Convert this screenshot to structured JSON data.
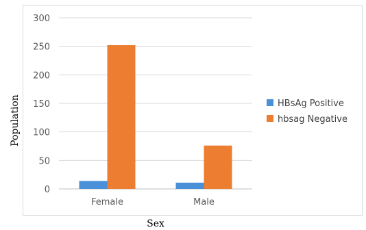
{
  "chart_data": {
    "type": "bar",
    "categories": [
      "Female",
      "Male"
    ],
    "series": [
      {
        "name": "HBsAg Positive",
        "values": [
          14,
          11
        ],
        "color": "#4a90d9"
      },
      {
        "name": "hbsag Negative",
        "values": [
          252,
          76
        ],
        "color": "#ed7d31"
      }
    ],
    "xlabel": "Sex",
    "ylabel": "Population",
    "ylim": [
      0,
      300
    ],
    "yticks": [
      0,
      50,
      100,
      150,
      200,
      250,
      300
    ],
    "grid": true,
    "legend_position": "right"
  }
}
